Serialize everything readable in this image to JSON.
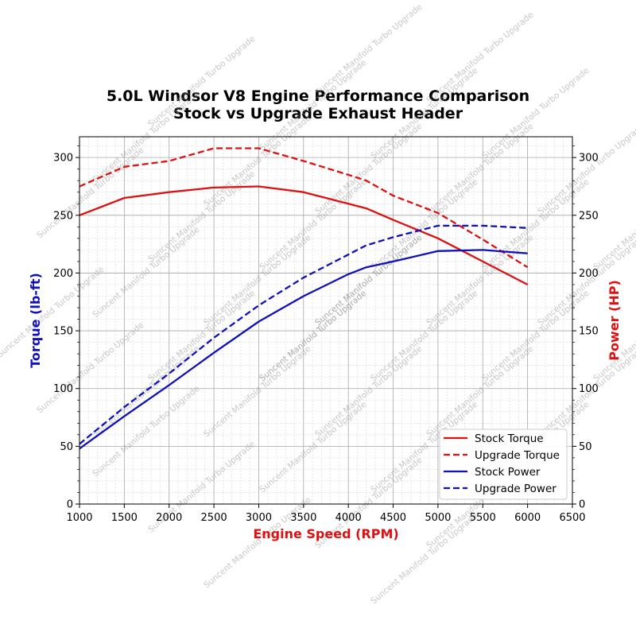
{
  "chart_data": {
    "type": "line",
    "title_line1": "5.0L Windsor V8 Engine Performance Comparison",
    "title_line2": "Stock vs Upgrade Exhaust Header",
    "xlabel": "Engine Speed (RPM)",
    "ylabel_left": "Torque (lb-ft)",
    "ylabel_right": "Power (HP)",
    "xlim": [
      1000,
      6500
    ],
    "ylim": [
      0,
      318
    ],
    "xticks": [
      1000,
      1500,
      2000,
      2500,
      3000,
      3500,
      4000,
      4500,
      5000,
      5500,
      6000,
      6500
    ],
    "yticks": [
      0,
      50,
      100,
      150,
      200,
      250,
      300
    ],
    "grid": true,
    "legend_position": "lower-right",
    "colors": {
      "torque": "#dd1111",
      "power": "#1111bb",
      "left_axis_label": "#1111bb",
      "right_axis_label": "#dd1111",
      "x_axis_label": "#dd1111"
    },
    "series": [
      {
        "name": "Stock Torque",
        "style": "solid",
        "color": "#dd1111",
        "x": [
          1000,
          1500,
          2000,
          2500,
          3000,
          3500,
          4000,
          4200,
          4500,
          5000,
          5500,
          6000
        ],
        "values": [
          250,
          265,
          270,
          274,
          275,
          270,
          260,
          256,
          246,
          230,
          210,
          190
        ]
      },
      {
        "name": "Upgrade Torque",
        "style": "dashed",
        "color": "#dd1111",
        "x": [
          1000,
          1500,
          2000,
          2500,
          3000,
          3500,
          4000,
          4200,
          4500,
          5000,
          5500,
          6000
        ],
        "values": [
          275,
          292,
          297,
          308,
          308,
          297,
          285,
          280,
          267,
          252,
          229,
          205
        ]
      },
      {
        "name": "Stock Power",
        "style": "solid",
        "color": "#1111bb",
        "x": [
          1000,
          1500,
          2000,
          2500,
          3000,
          3500,
          4000,
          4200,
          4500,
          5000,
          5500,
          6000
        ],
        "values": [
          48,
          76,
          103,
          131,
          158,
          180,
          199,
          205,
          210,
          219,
          220,
          217
        ]
      },
      {
        "name": "Upgrade Power",
        "style": "dashed",
        "color": "#1111bb",
        "x": [
          1000,
          1500,
          2000,
          2500,
          3000,
          3500,
          4000,
          4200,
          4500,
          5000,
          5500,
          6000
        ],
        "values": [
          52,
          84,
          113,
          144,
          172,
          196,
          216,
          224,
          231,
          241,
          241,
          239
        ]
      }
    ]
  },
  "watermark": "Suncent Manifold Turbo Upgrade"
}
